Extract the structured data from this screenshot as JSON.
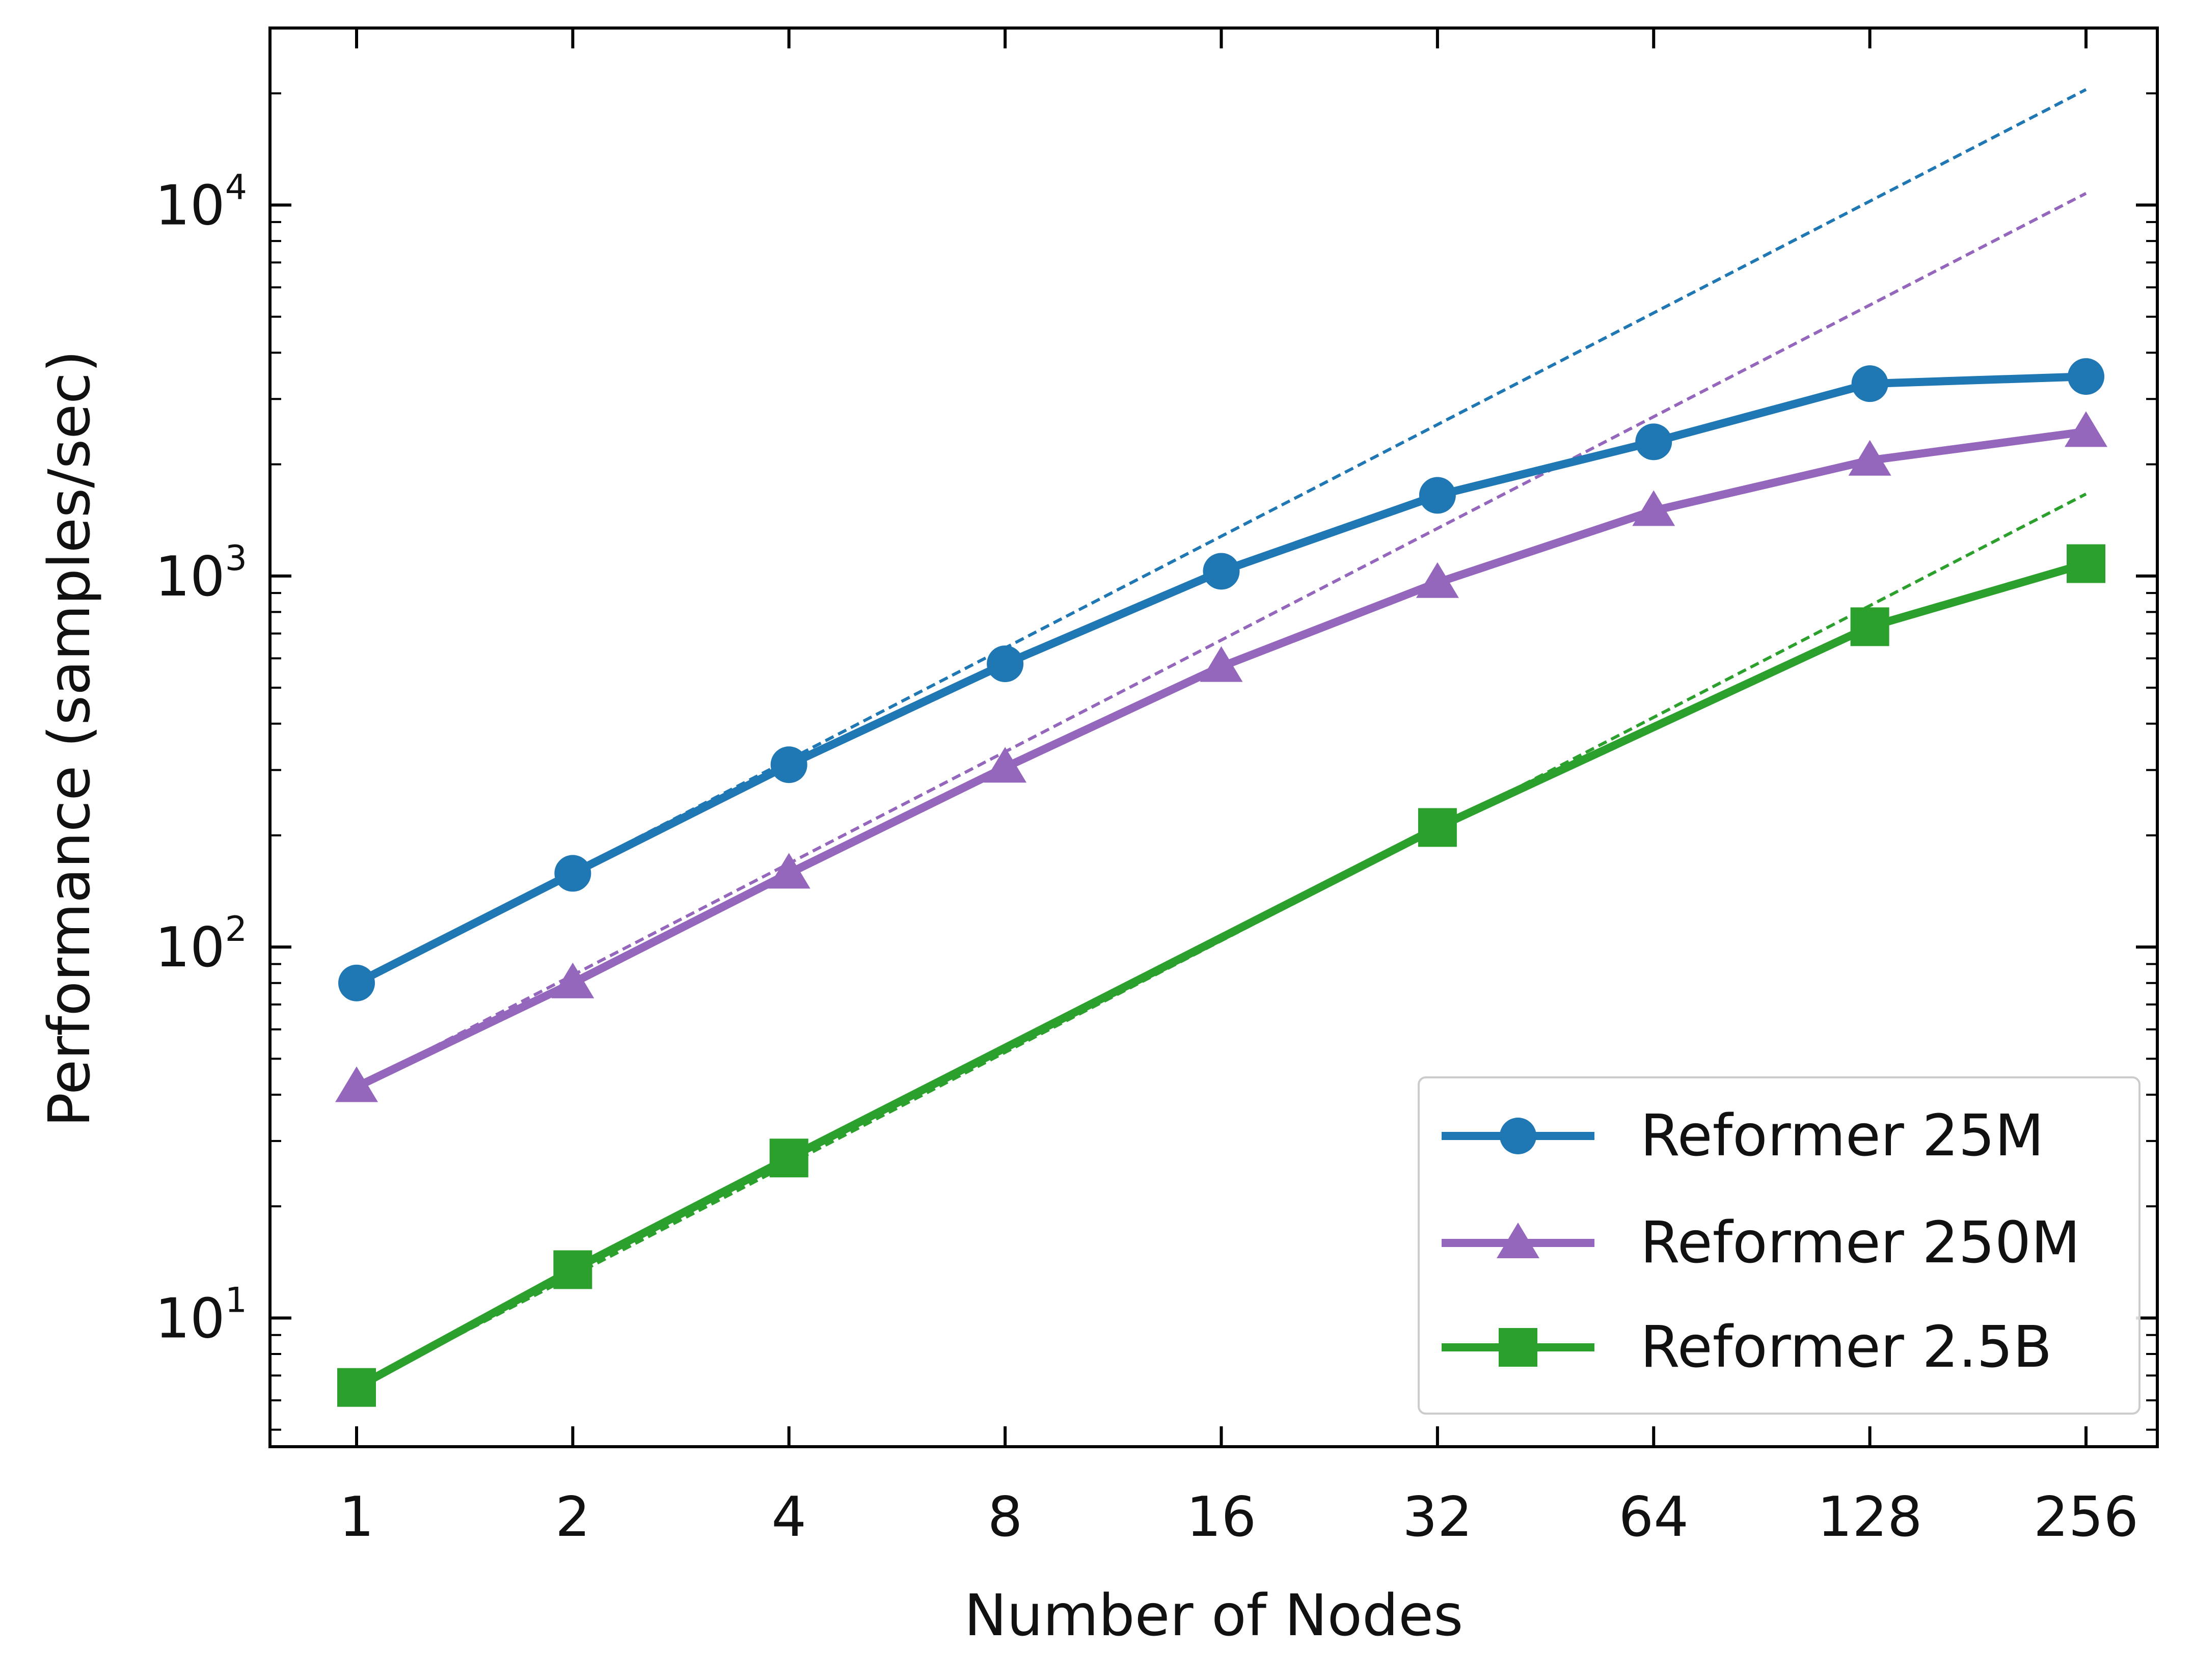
{
  "chart_data": {
    "type": "line",
    "title": "",
    "xlabel": "Number of Nodes",
    "ylabel": "Performance (samples/sec)",
    "x_scale": "log2",
    "y_scale": "log10",
    "x": [
      1,
      2,
      4,
      8,
      16,
      32,
      64,
      128,
      256
    ],
    "x_tick_labels": [
      "1",
      "2",
      "4",
      "8",
      "16",
      "32",
      "64",
      "128",
      "256"
    ],
    "y_ticks": [
      {
        "base": "10",
        "exp": "1",
        "value": 10
      },
      {
        "base": "10",
        "exp": "2",
        "value": 100
      },
      {
        "base": "10",
        "exp": "3",
        "value": 1000
      },
      {
        "base": "10",
        "exp": "4",
        "value": 10000
      }
    ],
    "ylim": [
      4.5,
      30000
    ],
    "grid": false,
    "legend_position": "bottom-right",
    "series": [
      {
        "name": "Reformer 25M",
        "color": "#1f77b4",
        "marker": "circle",
        "values": [
          80,
          158,
          310,
          580,
          1030,
          1650,
          2300,
          3300,
          3450
        ],
        "ideal_scaling": [
          80,
          160,
          320,
          640,
          1280,
          2560,
          5120,
          10240,
          20480
        ]
      },
      {
        "name": "Reformer 250M",
        "color": "#9467bd",
        "marker": "triangle",
        "values": [
          42,
          80,
          158,
          305,
          570,
          960,
          1500,
          2050,
          2450
        ],
        "ideal_scaling": [
          42,
          84,
          168,
          336,
          672,
          1344,
          2688,
          5376,
          10752
        ]
      },
      {
        "name": "Reformer 2.5B",
        "color": "#2ca02c",
        "marker": "square",
        "values": [
          6.5,
          13.5,
          27,
          null,
          null,
          210,
          null,
          730,
          1080
        ],
        "ideal_scaling": [
          6.5,
          13,
          26,
          52,
          104,
          208,
          416,
          832,
          1664
        ]
      }
    ]
  }
}
